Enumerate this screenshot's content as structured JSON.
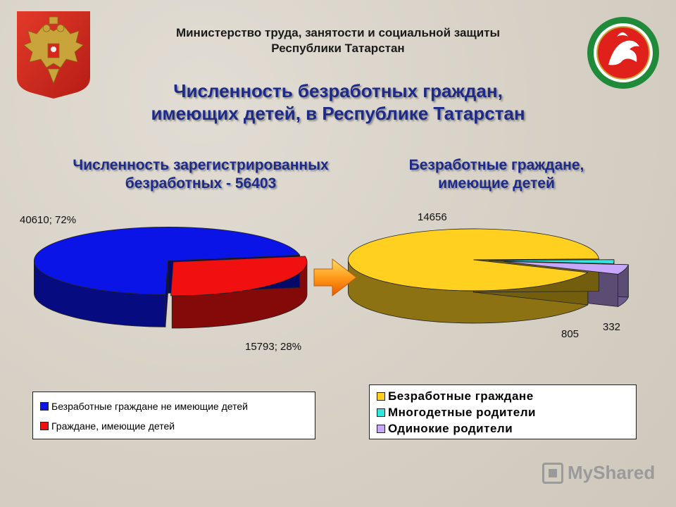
{
  "header": {
    "line1": "Министерство труда,  занятости и социальной защиты",
    "line2": "Республики Татарстан"
  },
  "title": {
    "line1": "Численность безработных граждан,",
    "line2": "имеющих детей, в Республике Татарстан"
  },
  "watermark": "MyShared",
  "colors": {
    "blue": "#0a14e6",
    "red": "#f01010",
    "yellow": "#ffd020",
    "cyan": "#30e8e0",
    "lilac": "#c8a8ff",
    "title": "#1d2a8a"
  },
  "icons": [
    "coat-of-arms-russia-icon",
    "coat-of-arms-tatarstan-icon",
    "arrow-right-icon"
  ],
  "chart_data": [
    {
      "type": "pie",
      "title": "Численность зарегистрированных безработных - 56403",
      "slices": [
        {
          "name": "Безработные граждане не имеющие детей",
          "value": 40610,
          "percent": 72,
          "label": "40610; 72%",
          "color": "#0a14e6"
        },
        {
          "name": "Граждане, имеющие детей",
          "value": 15793,
          "percent": 28,
          "label": "15793; 28%",
          "color": "#f01010"
        }
      ],
      "legend_position": "bottom",
      "style": "3d"
    },
    {
      "type": "pie",
      "title": "Безработные граждане, имеющие детей",
      "slices": [
        {
          "name": "Безработные граждане",
          "value": 14656,
          "label": "14656",
          "color": "#ffd020"
        },
        {
          "name": "Многодетные родители",
          "value": 332,
          "label": "332",
          "color": "#30e8e0"
        },
        {
          "name": "Одинокие родители",
          "value": 805,
          "label": "805",
          "color": "#c8a8ff"
        }
      ],
      "legend_position": "bottom",
      "style": "3d"
    }
  ]
}
